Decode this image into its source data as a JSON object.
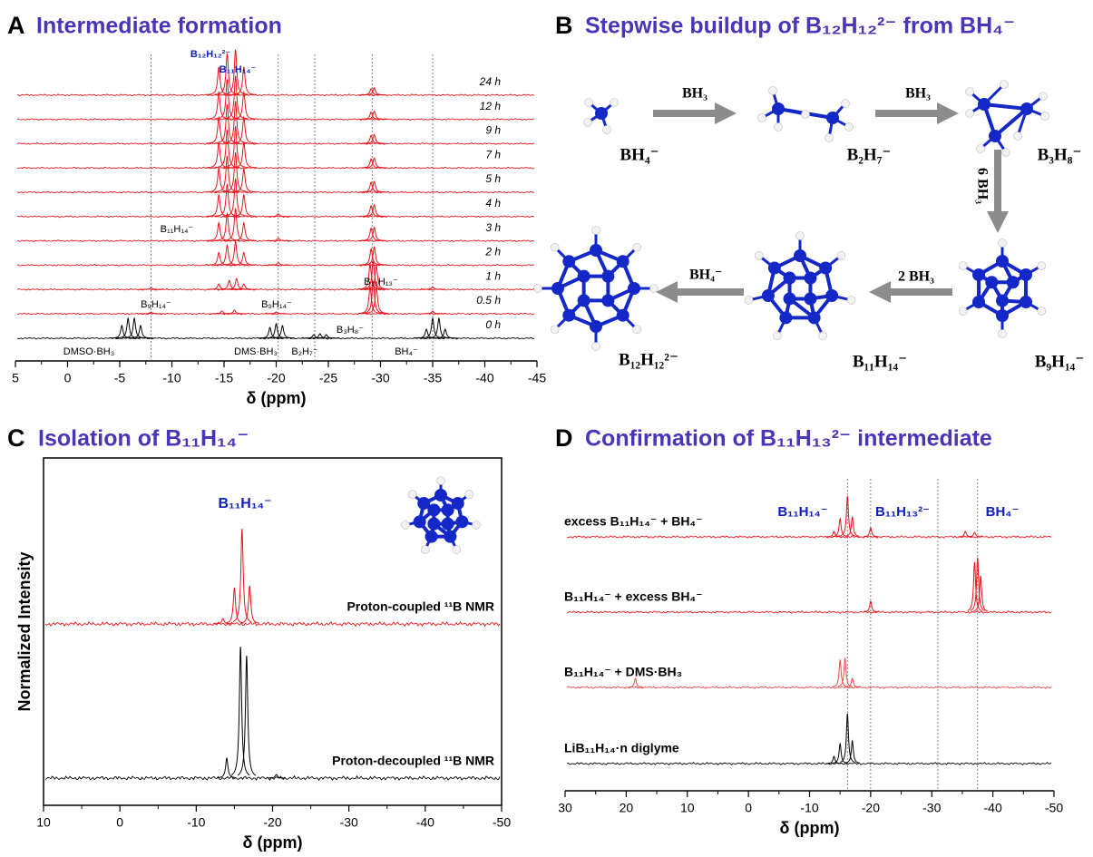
{
  "chart_data": [
    {
      "type": "spectrum",
      "panel": "A",
      "title": "Intermediate formation",
      "x_label": "δ (ppm)",
      "xlim": [
        5,
        -45
      ],
      "xticks": [
        5,
        0,
        -5,
        -10,
        -15,
        -20,
        -25,
        -30,
        -35,
        -40,
        -45
      ],
      "ref_lines": [
        -8,
        -20.2,
        -23.7,
        -29.2,
        -35
      ],
      "annotations": [
        "B₁₂H₁₂²⁻",
        "B₁₁H₁₄⁻",
        "B₁₁H₁₄⁻",
        "B₁₀H₁₃⁻",
        "B₉H₁₄⁻",
        "B₉H₁₄⁻",
        "DMSO·BH₃",
        "DMS·BH₃",
        "B₂H₇⁻",
        "B₃H₈⁻",
        "BH₄⁻"
      ],
      "traces": [
        {
          "name": "0 h",
          "color": "#000000",
          "peaks": [
            [
              -5.2,
              14
            ],
            [
              -5.8,
              22
            ],
            [
              -6.4,
              22
            ],
            [
              -7,
              14
            ],
            [
              -19.4,
              12
            ],
            [
              -20,
              16
            ],
            [
              -20.6,
              14
            ],
            [
              -23.6,
              4
            ],
            [
              -24.2,
              5
            ],
            [
              -24.8,
              4
            ],
            [
              -34.4,
              10
            ],
            [
              -35,
              22
            ],
            [
              -35.6,
              22
            ],
            [
              -36.2,
              10
            ]
          ]
        },
        {
          "name": "0.5 h",
          "color": "#e8141b",
          "peaks": [
            [
              -8,
              2
            ],
            [
              -14.8,
              3
            ],
            [
              -16,
              4
            ],
            [
              -20,
              2
            ],
            [
              -29,
              30
            ],
            [
              -29.3,
              36
            ],
            [
              -29.6,
              30
            ],
            [
              -35,
              3
            ]
          ]
        },
        {
          "name": "1 h",
          "color": "#e8141b",
          "peaks": [
            [
              -8,
              2
            ],
            [
              -14.5,
              6
            ],
            [
              -15.5,
              10
            ],
            [
              -16.2,
              12
            ],
            [
              -16.9,
              6
            ],
            [
              -29,
              28
            ],
            [
              -29.3,
              32
            ],
            [
              -29.6,
              26
            ],
            [
              -35,
              3
            ]
          ]
        },
        {
          "name": "2 h",
          "color": "#e8141b",
          "peaks": [
            [
              -14.5,
              14
            ],
            [
              -15.3,
              22
            ],
            [
              -16.1,
              26
            ],
            [
              -16.9,
              14
            ],
            [
              -20.2,
              3
            ],
            [
              -29.1,
              18
            ],
            [
              -29.4,
              20
            ]
          ]
        },
        {
          "name": "3 h",
          "color": "#e8141b",
          "peaks": [
            [
              -14.5,
              20
            ],
            [
              -15.3,
              30
            ],
            [
              -16.1,
              36
            ],
            [
              -16.9,
              20
            ],
            [
              -20.2,
              3
            ],
            [
              -29.1,
              14
            ],
            [
              -29.4,
              15
            ]
          ]
        },
        {
          "name": "4 h",
          "color": "#e8141b",
          "peaks": [
            [
              -14.5,
              24
            ],
            [
              -15.3,
              36
            ],
            [
              -16.1,
              42
            ],
            [
              -16.9,
              24
            ],
            [
              -20.2,
              3
            ],
            [
              -29.1,
              12
            ],
            [
              -29.4,
              13
            ]
          ]
        },
        {
          "name": "5 h",
          "color": "#e8141b",
          "peaks": [
            [
              -14.5,
              26
            ],
            [
              -15.3,
              40
            ],
            [
              -16.1,
              44
            ],
            [
              -16.9,
              26
            ],
            [
              -29.1,
              11
            ],
            [
              -29.4,
              12
            ]
          ]
        },
        {
          "name": "7 h",
          "color": "#e8141b",
          "peaks": [
            [
              -14.5,
              28
            ],
            [
              -15.3,
              42
            ],
            [
              -16.1,
              46
            ],
            [
              -16.9,
              28
            ],
            [
              -29.1,
              10
            ],
            [
              -29.4,
              11
            ]
          ]
        },
        {
          "name": "9 h",
          "color": "#e8141b",
          "peaks": [
            [
              -14.5,
              29
            ],
            [
              -15.3,
              43
            ],
            [
              -16.1,
              47
            ],
            [
              -16.9,
              29
            ],
            [
              -29.1,
              9
            ],
            [
              -29.4,
              10
            ]
          ]
        },
        {
          "name": "12 h",
          "color": "#e8141b",
          "peaks": [
            [
              -14.5,
              30
            ],
            [
              -15.3,
              44
            ],
            [
              -16.1,
              48
            ],
            [
              -16.9,
              30
            ],
            [
              -29.1,
              8
            ],
            [
              -29.4,
              9
            ]
          ]
        },
        {
          "name": "24 h",
          "color": "#e8141b",
          "peaks": [
            [
              -14.5,
              31
            ],
            [
              -15.3,
              46
            ],
            [
              -16.1,
              50
            ],
            [
              -16.9,
              31
            ],
            [
              -29.1,
              7
            ],
            [
              -29.4,
              8
            ]
          ]
        }
      ]
    },
    {
      "type": "spectrum",
      "panel": "C",
      "title": "Isolation of B₁₁H₁₄⁻",
      "x_label": "δ (ppm)",
      "y_label": "Normalized Intensity",
      "xlim": [
        10,
        -50
      ],
      "xticks": [
        10,
        0,
        -10,
        -20,
        -30,
        -40,
        -50
      ],
      "ref_lines": [],
      "annotations": [
        "B₁₁H₁₄⁻"
      ],
      "traces": [
        {
          "name": "Proton-coupled ¹¹B NMR",
          "color": "#e8141b",
          "peaks": [
            [
              -13.5,
              6
            ],
            [
              -15,
              40
            ],
            [
              -16,
              105
            ],
            [
              -17,
              42
            ]
          ]
        },
        {
          "name": "Proton-decoupled ¹¹B NMR",
          "color": "#000000",
          "peaks": [
            [
              -14,
              22
            ],
            [
              -15.8,
              145
            ],
            [
              -16.6,
              135
            ],
            [
              -20.5,
              4
            ]
          ]
        }
      ]
    },
    {
      "type": "spectrum",
      "panel": "D",
      "title": "Confirmation of B₁₁H₁₃²⁻ intermediate",
      "x_label": "δ (ppm)",
      "xlim": [
        30,
        -50
      ],
      "xticks": [
        30,
        20,
        10,
        0,
        -10,
        -20,
        -30,
        -40,
        -50
      ],
      "ref_lines": [
        -16.2,
        -20,
        -31,
        -37.5
      ],
      "annotations": [
        "B₁₁H₁₄⁻",
        "B₁₁H₁₃²⁻",
        "BH₄⁻"
      ],
      "traces": [
        {
          "name": "excess B₁₁H₁₄⁻ + BH₄⁻",
          "color": "#e8141b",
          "peaks": [
            [
              -14,
              6
            ],
            [
              -15,
              20
            ],
            [
              -16.2,
              45
            ],
            [
              -17,
              22
            ],
            [
              -20,
              10
            ],
            [
              -35.5,
              6
            ],
            [
              -37,
              5
            ]
          ]
        },
        {
          "name": "B₁₁H₁₄⁻ + excess BH₄⁻",
          "color": "#e8141b",
          "peaks": [
            [
              -20,
              12
            ],
            [
              -37,
              55
            ],
            [
              -37.5,
              60
            ],
            [
              -38,
              40
            ]
          ]
        },
        {
          "name": "B₁₁H₁₄⁻ + DMS·BH₃",
          "color": "#f04848",
          "peaks": [
            [
              18.5,
              10
            ],
            [
              -15,
              30
            ],
            [
              -15.8,
              32
            ],
            [
              -17,
              10
            ]
          ]
        },
        {
          "name": "LiB₁₁H₁₄·n diglyme",
          "color": "#000000",
          "peaks": [
            [
              -14,
              8
            ],
            [
              -15,
              22
            ],
            [
              -16.2,
              55
            ],
            [
              -17,
              25
            ]
          ]
        }
      ]
    }
  ],
  "diagram": {
    "panel": "B",
    "title": "Stepwise buildup of B₁₂H₁₂²⁻ from BH₄⁻",
    "species": [
      "BH₄⁻",
      "B₂H₇⁻",
      "B₃H₈⁻",
      "B₉H₁₄⁻",
      "B₁₁H₁₄⁻",
      "B₁₂H₁₂²⁻"
    ],
    "reagents": [
      "BH₃",
      "BH₃",
      "6 BH₃",
      "2 BH₃",
      "BH₄⁻"
    ]
  }
}
